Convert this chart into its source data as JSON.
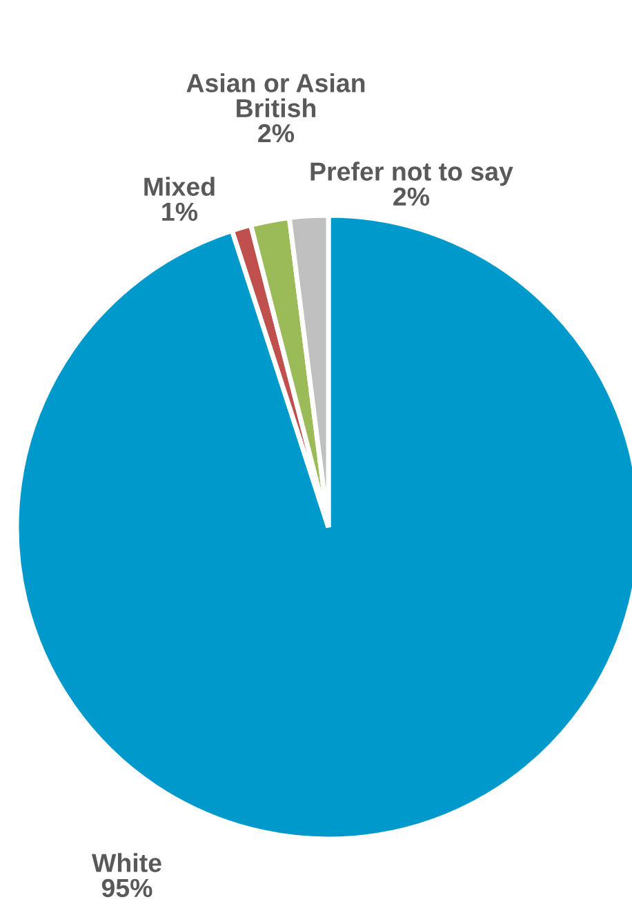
{
  "chart_data": {
    "type": "pie",
    "categories": [
      "White",
      "Mixed",
      "Asian or Asian British",
      "Prefer not to say"
    ],
    "values": [
      95,
      1,
      2,
      2
    ],
    "value_labels": [
      "95%",
      "1%",
      "2%",
      "2%"
    ],
    "colors": [
      "#0099cc",
      "#c0504d",
      "#9bbb59",
      "#c0c0c0"
    ]
  }
}
